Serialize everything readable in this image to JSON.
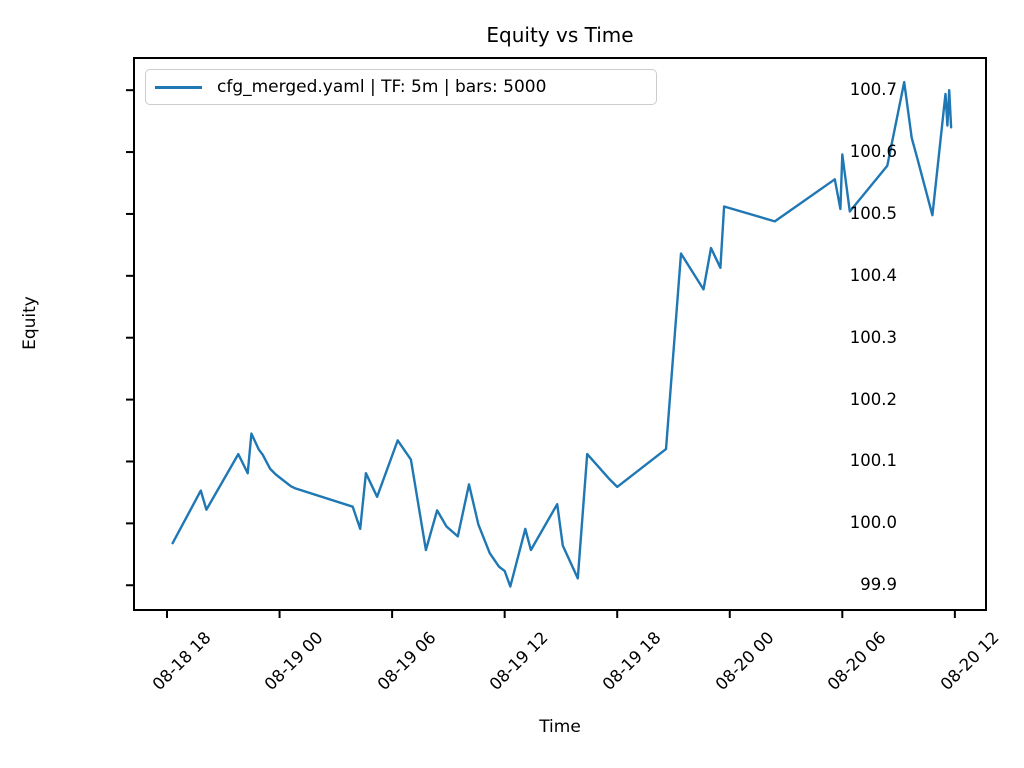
{
  "chart_data": {
    "type": "line",
    "title": "Equity vs Time",
    "xlabel": "Time",
    "ylabel": "Equity",
    "legend_position": "upper left",
    "grid": false,
    "colors": {
      "line": "#1f77b4",
      "frame": "#000000",
      "legend_border": "#cccccc",
      "text": "#000000"
    },
    "x_axis_note": "x values are hours after the first tick (08-18 18:00)",
    "xlim": [
      -1.76,
      43.66
    ],
    "ylim": [
      99.86,
      100.752
    ],
    "x_ticks": [
      {
        "t": 0,
        "label": "08-18 18"
      },
      {
        "t": 6,
        "label": "08-19 00"
      },
      {
        "t": 12,
        "label": "08-19 06"
      },
      {
        "t": 18,
        "label": "08-19 12"
      },
      {
        "t": 24,
        "label": "08-19 18"
      },
      {
        "t": 30,
        "label": "08-20 00"
      },
      {
        "t": 36,
        "label": "08-20 06"
      },
      {
        "t": 42,
        "label": "08-20 12"
      }
    ],
    "y_ticks": [
      99.9,
      100.0,
      100.1,
      100.2,
      100.3,
      100.4,
      100.5,
      100.6,
      100.7
    ],
    "series": [
      {
        "name": "cfg_merged.yaml | TF: 5m | bars: 5000",
        "points": [
          [
            0.3,
            99.968
          ],
          [
            1.8,
            100.053
          ],
          [
            2.1,
            100.022
          ],
          [
            3.8,
            100.112
          ],
          [
            4.3,
            100.081
          ],
          [
            4.5,
            100.145
          ],
          [
            4.9,
            100.119
          ],
          [
            5.1,
            100.111
          ],
          [
            5.5,
            100.088
          ],
          [
            5.8,
            100.079
          ],
          [
            6.6,
            100.06
          ],
          [
            6.8,
            100.057
          ],
          [
            9.9,
            100.027
          ],
          [
            10.3,
            99.991
          ],
          [
            10.6,
            100.081
          ],
          [
            11.2,
            100.043
          ],
          [
            12.3,
            100.134
          ],
          [
            13.0,
            100.103
          ],
          [
            13.8,
            99.957
          ],
          [
            14.4,
            100.021
          ],
          [
            14.9,
            99.995
          ],
          [
            15.5,
            99.979
          ],
          [
            16.1,
            100.063
          ],
          [
            16.6,
            99.998
          ],
          [
            17.2,
            99.952
          ],
          [
            17.7,
            99.93
          ],
          [
            18.0,
            99.923
          ],
          [
            18.3,
            99.898
          ],
          [
            19.1,
            99.991
          ],
          [
            19.4,
            99.957
          ],
          [
            20.8,
            100.031
          ],
          [
            21.1,
            99.964
          ],
          [
            21.9,
            99.911
          ],
          [
            22.4,
            100.112
          ],
          [
            23.6,
            100.071
          ],
          [
            24.0,
            100.059
          ],
          [
            26.6,
            100.12
          ],
          [
            27.4,
            100.436
          ],
          [
            28.6,
            100.378
          ],
          [
            29.0,
            100.445
          ],
          [
            29.5,
            100.413
          ],
          [
            29.7,
            100.512
          ],
          [
            32.4,
            100.488
          ],
          [
            35.6,
            100.556
          ],
          [
            35.9,
            100.508
          ],
          [
            36.0,
            100.596
          ],
          [
            36.4,
            100.504
          ],
          [
            38.4,
            100.578
          ],
          [
            39.3,
            100.713
          ],
          [
            39.7,
            100.623
          ],
          [
            40.0,
            100.59
          ],
          [
            40.8,
            100.498
          ],
          [
            41.5,
            100.694
          ],
          [
            41.6,
            100.643
          ],
          [
            41.7,
            100.7
          ],
          [
            41.8,
            100.64
          ]
        ]
      }
    ]
  }
}
